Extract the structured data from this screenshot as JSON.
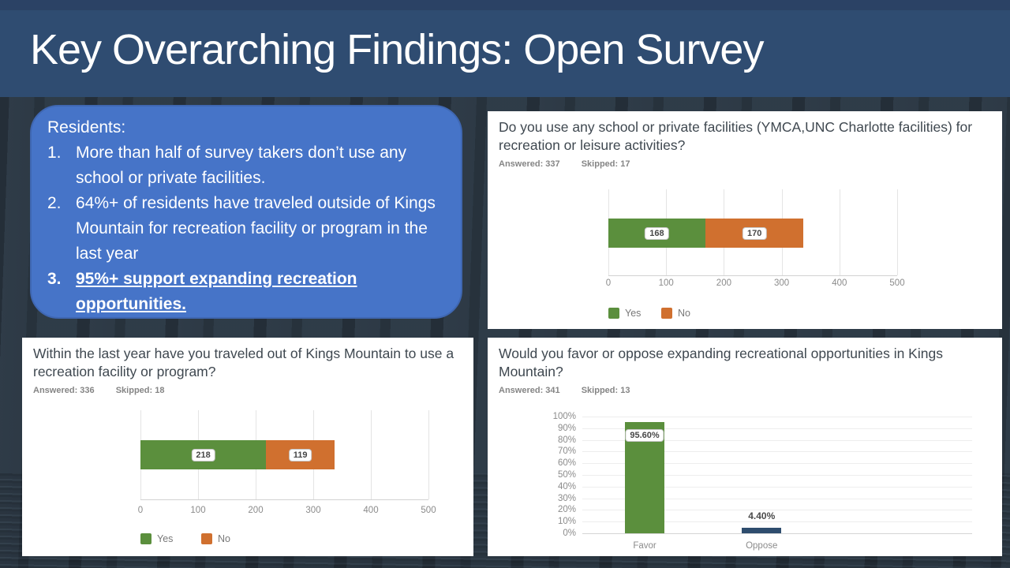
{
  "slide": {
    "title": "Key Overarching Findings: Open Survey"
  },
  "callout": {
    "heading": "Residents:",
    "items": [
      {
        "num": "1.",
        "text": "More than half of survey takers don’t use any school or private facilities."
      },
      {
        "num": "2.",
        "text": "64%+ of residents have traveled outside of Kings Mountain for recreation facility or program in the last year"
      },
      {
        "num": "3.",
        "text": "95%+ support expanding recreation opportunities."
      }
    ]
  },
  "colors": {
    "header_bg": "#2f4c71",
    "callout_bg": "#4674c8",
    "yes_green": "#5b8f3d",
    "no_orange": "#d0702f",
    "oppose_navy": "#2e4d6e"
  },
  "chart_data": [
    {
      "type": "bar",
      "orientation": "horizontal-stacked",
      "title": "Do you use any school or private facilities (YMCA,UNC Charlotte facilities) for recreation or leisure activities?",
      "answered_label": "Answered: 337",
      "skipped_label": "Skipped: 17",
      "xlim": [
        0,
        500
      ],
      "x_ticks": [
        0,
        100,
        200,
        300,
        400,
        500
      ],
      "series": [
        {
          "name": "Yes",
          "value": 168,
          "color": "#5b8f3d"
        },
        {
          "name": "No",
          "value": 170,
          "color": "#d0702f"
        }
      ],
      "legend_position": "bottom",
      "grid": true
    },
    {
      "type": "bar",
      "orientation": "horizontal-stacked",
      "title": "Within the last year have you traveled out of Kings Mountain to use a recreation facility or program?",
      "answered_label": "Answered: 336",
      "skipped_label": "Skipped: 18",
      "xlim": [
        0,
        500
      ],
      "x_ticks": [
        0,
        100,
        200,
        300,
        400,
        500
      ],
      "series": [
        {
          "name": "Yes",
          "value": 218,
          "color": "#5b8f3d"
        },
        {
          "name": "No",
          "value": 119,
          "color": "#d0702f"
        }
      ],
      "legend_position": "bottom",
      "grid": true
    },
    {
      "type": "bar",
      "orientation": "vertical",
      "title": "Would you favor or oppose expanding recreational opportunities in Kings Mountain?",
      "answered_label": "Answered: 341",
      "skipped_label": "Skipped: 13",
      "categories": [
        "Favor",
        "Oppose"
      ],
      "values": [
        95.6,
        4.4
      ],
      "value_labels": [
        "95.60%",
        "4.40%"
      ],
      "label_styles": [
        "pill",
        "plain"
      ],
      "bar_colors": [
        "#5b8f3d",
        "#2e4d6e"
      ],
      "ylim": [
        0,
        100
      ],
      "y_ticks": [
        "100%",
        "90%",
        "80%",
        "70%",
        "60%",
        "50%",
        "40%",
        "30%",
        "20%",
        "10%",
        "0%"
      ],
      "legend_position": "none",
      "grid": true
    }
  ]
}
